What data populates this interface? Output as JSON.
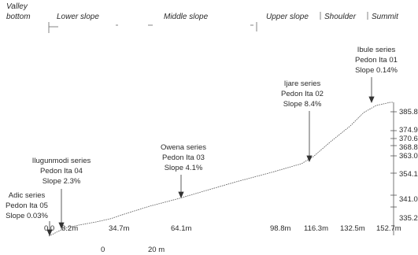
{
  "positions": [
    {
      "line1": "Valley",
      "line2": "bottom"
    },
    {
      "line1": "Lower slope"
    },
    {
      "line1": "Middle slope"
    },
    {
      "line1": "Upper slope"
    },
    {
      "line1": "Shoulder"
    },
    {
      "line1": "Summit"
    }
  ],
  "pedons": [
    {
      "series": "Adic series",
      "pedon": "Pedon Ita 05",
      "slope": "Slope 0.03%"
    },
    {
      "series": "Ilugunmodi series",
      "pedon": "Pedon Ita 04",
      "slope": "Slope 2.3%"
    },
    {
      "series": "Owena series",
      "pedon": "Pedon Ita 03",
      "slope": "Slope 4.1%"
    },
    {
      "series": "Ijare series",
      "pedon": "Pedon Ita 02",
      "slope": "Slope 8.4%"
    },
    {
      "series": "Ibule series",
      "pedon": "Pedon Ita 01",
      "slope": "Slope 0.14%"
    }
  ],
  "elevations": [
    "385.85m",
    "374.90m",
    "370.64m",
    "368.81m",
    "363.02m",
    "354.18m",
    "341.07m",
    "335.28m"
  ],
  "distances": [
    "0.0",
    "8.2m",
    "34.7m",
    "64.1m",
    "98.8m",
    "116.3m",
    "132.5m",
    "152.7m"
  ],
  "scale": {
    "start": "0",
    "end": "20 m"
  }
}
